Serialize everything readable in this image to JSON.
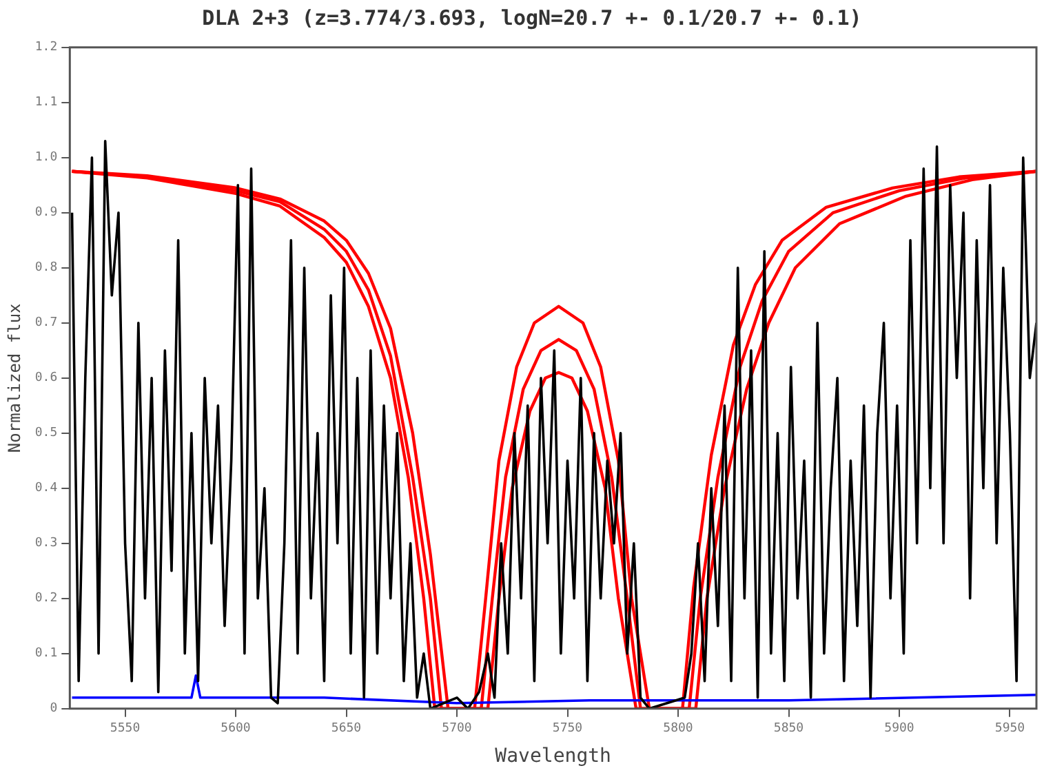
{
  "chart_data": {
    "type": "line",
    "title": "DLA 2+3 (z=3.774/3.693, logN=20.7 +- 0.1/20.7 +- 0.1)",
    "xlabel": "Wavelength",
    "ylabel": "Normalized flux",
    "xlim": [
      5525,
      5962
    ],
    "xticks": [
      5550,
      5600,
      5650,
      5700,
      5750,
      5800,
      5850,
      5900,
      5950
    ],
    "ylim": [
      0,
      1.2
    ],
    "yticks": [
      0,
      0.1,
      0.2,
      0.3,
      0.4,
      0.5,
      0.6,
      0.7,
      0.8,
      0.9,
      {
        "value": 1,
        "label": "1.0"
      },
      1.1,
      1.2
    ],
    "grid": false,
    "legend": false,
    "marker": "none",
    "line_style": "solid",
    "series": [
      {
        "color": "#000000",
        "x": [
          5526,
          5529,
          5532,
          5535,
          5538,
          5541,
          5544,
          5547,
          5550,
          5553,
          5556,
          5559,
          5562,
          5565,
          5568,
          5571,
          5574,
          5577,
          5580,
          5583,
          5586,
          5589,
          5592,
          5595,
          5598,
          5601,
          5604,
          5607,
          5610,
          5613,
          5616,
          5619,
          5622,
          5625,
          5628,
          5631,
          5634,
          5637,
          5640,
          5643,
          5646,
          5649,
          5652,
          5655,
          5658,
          5661,
          5664,
          5667,
          5670,
          5673,
          5676,
          5679,
          5682,
          5685,
          5688,
          5700,
          5705,
          5710,
          5714,
          5717,
          5720,
          5723,
          5726,
          5729,
          5732,
          5735,
          5738,
          5741,
          5744,
          5747,
          5750,
          5753,
          5756,
          5759,
          5762,
          5765,
          5768,
          5771,
          5774,
          5777,
          5780,
          5783,
          5787,
          5795,
          5803,
          5806,
          5809,
          5812,
          5815,
          5818,
          5821,
          5824,
          5827,
          5830,
          5833,
          5836,
          5839,
          5842,
          5845,
          5848,
          5851,
          5854,
          5857,
          5860,
          5863,
          5866,
          5869,
          5872,
          5875,
          5878,
          5881,
          5884,
          5887,
          5890,
          5893,
          5896,
          5899,
          5902,
          5905,
          5908,
          5911,
          5914,
          5917,
          5920,
          5923,
          5926,
          5929,
          5932,
          5935,
          5938,
          5941,
          5944,
          5947,
          5950,
          5953,
          5956,
          5959,
          5962
        ],
        "values": [
          0.9,
          0.05,
          0.6,
          1.0,
          0.1,
          1.03,
          0.75,
          0.9,
          0.3,
          0.05,
          0.7,
          0.2,
          0.6,
          0.03,
          0.65,
          0.25,
          0.85,
          0.1,
          0.5,
          0.05,
          0.6,
          0.3,
          0.55,
          0.15,
          0.45,
          0.95,
          0.1,
          0.98,
          0.2,
          0.4,
          0.02,
          0.01,
          0.3,
          0.85,
          0.1,
          0.8,
          0.2,
          0.5,
          0.05,
          0.75,
          0.3,
          0.8,
          0.1,
          0.6,
          0.02,
          0.65,
          0.1,
          0.55,
          0.2,
          0.5,
          0.05,
          0.3,
          0.02,
          0.1,
          0,
          0.02,
          0,
          0.03,
          0.1,
          0.02,
          0.3,
          0.1,
          0.5,
          0.2,
          0.55,
          0.05,
          0.6,
          0.3,
          0.65,
          0.1,
          0.45,
          0.2,
          0.6,
          0.05,
          0.5,
          0.2,
          0.45,
          0.3,
          0.5,
          0.1,
          0.3,
          0.02,
          0,
          0.01,
          0.02,
          0.1,
          0.3,
          0.05,
          0.4,
          0.15,
          0.55,
          0.05,
          0.8,
          0.2,
          0.65,
          0.02,
          0.83,
          0.1,
          0.5,
          0.05,
          0.62,
          0.2,
          0.45,
          0.02,
          0.7,
          0.1,
          0.4,
          0.6,
          0.05,
          0.45,
          0.15,
          0.55,
          0.02,
          0.5,
          0.7,
          0.2,
          0.55,
          0.1,
          0.85,
          0.3,
          0.98,
          0.4,
          1.02,
          0.3,
          0.95,
          0.6,
          0.9,
          0.2,
          0.85,
          0.4,
          0.95,
          0.3,
          0.8,
          0.5,
          0.05,
          1.0,
          0.6,
          0.7
        ]
      },
      {
        "color": "#0000ff",
        "x": [
          5526,
          5580,
          5582,
          5584,
          5640,
          5700,
          5760,
          5850,
          5962
        ],
        "values": [
          0.02,
          0.02,
          0.06,
          0.02,
          0.02,
          0.01,
          0.015,
          0.015,
          0.025
        ]
      },
      {
        "color": "#ff0000",
        "x": [
          5526,
          5560,
          5600,
          5620,
          5640,
          5650,
          5660,
          5670,
          5680,
          5688,
          5696,
          5708,
          5713,
          5719,
          5727,
          5735,
          5746,
          5757,
          5765,
          5773,
          5779,
          5787,
          5802,
          5807,
          5815,
          5825,
          5835,
          5847,
          5867,
          5897,
          5927,
          5962
        ],
        "values": [
          0.975,
          0.967,
          0.945,
          0.925,
          0.885,
          0.85,
          0.79,
          0.69,
          0.5,
          0.28,
          0,
          0,
          0.2,
          0.45,
          0.62,
          0.7,
          0.73,
          0.7,
          0.62,
          0.45,
          0.2,
          0,
          0,
          0.22,
          0.46,
          0.66,
          0.77,
          0.85,
          0.91,
          0.945,
          0.965,
          0.975
        ]
      },
      {
        "color": "#ff0000",
        "x": [
          5526,
          5560,
          5600,
          5620,
          5640,
          5650,
          5660,
          5670,
          5680,
          5688,
          5693,
          5711,
          5716,
          5722,
          5730,
          5738,
          5746,
          5754,
          5762,
          5770,
          5777,
          5783,
          5805,
          5810,
          5818,
          5828,
          5838,
          5850,
          5870,
          5900,
          5930,
          5962
        ],
        "values": [
          0.975,
          0.965,
          0.94,
          0.92,
          0.87,
          0.83,
          0.76,
          0.64,
          0.42,
          0.2,
          0,
          0,
          0.2,
          0.42,
          0.58,
          0.65,
          0.67,
          0.65,
          0.58,
          0.42,
          0.2,
          0,
          0,
          0.2,
          0.42,
          0.62,
          0.74,
          0.83,
          0.9,
          0.94,
          0.963,
          0.975
        ]
      },
      {
        "color": "#ff0000",
        "x": [
          5526,
          5560,
          5600,
          5620,
          5640,
          5650,
          5660,
          5670,
          5678,
          5685,
          5690,
          5714,
          5719,
          5725,
          5733,
          5740,
          5746,
          5752,
          5759,
          5767,
          5773,
          5781,
          5808,
          5813,
          5821,
          5831,
          5841,
          5853,
          5873,
          5903,
          5933,
          5962
        ],
        "values": [
          0.975,
          0.963,
          0.935,
          0.912,
          0.855,
          0.81,
          0.73,
          0.6,
          0.42,
          0.2,
          0,
          0,
          0.2,
          0.4,
          0.54,
          0.6,
          0.61,
          0.6,
          0.54,
          0.4,
          0.2,
          0,
          0,
          0.2,
          0.4,
          0.58,
          0.7,
          0.8,
          0.88,
          0.93,
          0.96,
          0.975
        ]
      }
    ]
  }
}
